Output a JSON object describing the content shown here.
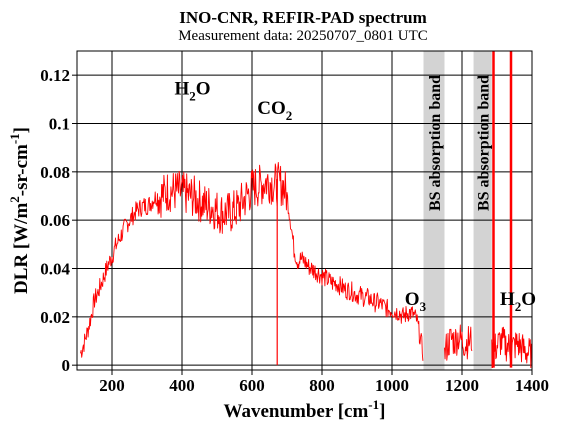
{
  "chart_data": {
    "type": "line",
    "title": "INO-CNR, REFIR-PAD spectrum",
    "subtitle": "Measurement data: 20250707_0801 UTC",
    "xlabel": "Wavenumber [cm-1]",
    "ylabel": "DLR [W/m2-sr-cm-1]",
    "xlim": [
      100,
      1400
    ],
    "ylim": [
      -0.002,
      0.13
    ],
    "xticks": [
      "200",
      "400",
      "600",
      "800",
      "1000",
      "1200",
      "1400"
    ],
    "xtick_values": [
      200,
      400,
      600,
      800,
      1000,
      1200,
      1400
    ],
    "yticks": [
      "0",
      "0.02",
      "0.04",
      "0.06",
      "0.08",
      "0.1",
      "0.12"
    ],
    "ytick_values": [
      0,
      0.02,
      0.04,
      0.06,
      0.08,
      0.1,
      0.12
    ],
    "grid": true,
    "line_color": "#ff0000",
    "band_color": "#d3d3d3",
    "annotations": [
      {
        "label": "H2O",
        "base": "H",
        "sub": "2",
        "rest": "O",
        "x": 430,
        "y": 0.112
      },
      {
        "label": "CO2",
        "base": "CO",
        "sub": "2",
        "rest": "",
        "x": 665,
        "y": 0.104
      },
      {
        "label": "O3",
        "base": "O",
        "sub": "3",
        "rest": "",
        "x": 1067,
        "y": 0.025
      },
      {
        "label": "H2O",
        "base": "H",
        "sub": "2",
        "rest": "O",
        "x": 1360,
        "y": 0.025
      }
    ],
    "bands": [
      {
        "label": "BS absorption band",
        "x0": 1090,
        "x1": 1150
      },
      {
        "label": "BS absorption band",
        "x0": 1233,
        "x1": 1285
      }
    ],
    "series": [
      {
        "x": [
          110,
          120,
          130,
          140,
          150,
          160,
          170,
          180,
          190,
          200,
          210,
          220,
          230,
          240,
          250,
          260,
          270,
          280,
          290,
          300,
          310,
          320,
          330,
          340,
          350,
          360,
          370,
          380,
          390,
          400,
          410,
          420,
          430,
          440,
          450,
          460,
          470,
          480,
          490,
          500,
          510,
          520,
          530,
          540,
          550,
          560,
          570,
          580,
          590,
          600,
          610,
          620,
          630,
          640,
          650,
          660,
          670,
          680,
          690,
          700,
          710,
          720,
          730,
          740,
          750,
          760,
          770,
          780,
          790,
          800,
          810,
          820,
          830,
          840,
          850,
          860,
          870,
          880,
          890,
          900,
          910,
          920,
          930,
          940,
          950,
          960,
          970,
          980,
          990,
          1000,
          1010,
          1020,
          1030,
          1040,
          1050,
          1060,
          1070,
          1080,
          1090,
          1150,
          1160,
          1170,
          1180,
          1190,
          1200,
          1210,
          1220,
          1230,
          1285,
          1290,
          1300,
          1310,
          1320,
          1330,
          1340,
          1350,
          1360,
          1370,
          1380,
          1390,
          1400
        ],
        "y": [
          0.005,
          0.009,
          0.014,
          0.02,
          0.027,
          0.03,
          0.034,
          0.038,
          0.042,
          0.045,
          0.049,
          0.052,
          0.055,
          0.058,
          0.06,
          0.062,
          0.064,
          0.065,
          0.066,
          0.066,
          0.067,
          0.069,
          0.07,
          0.07,
          0.071,
          0.072,
          0.072,
          0.072,
          0.072,
          0.071,
          0.071,
          0.07,
          0.07,
          0.069,
          0.068,
          0.067,
          0.066,
          0.066,
          0.065,
          0.064,
          0.063,
          0.063,
          0.063,
          0.063,
          0.064,
          0.065,
          0.067,
          0.069,
          0.071,
          0.073,
          0.074,
          0.074,
          0.075,
          0.076,
          0.076,
          0.075,
          0.075,
          0.075,
          0.074,
          0.07,
          0.06,
          0.048,
          0.043,
          0.044,
          0.043,
          0.041,
          0.04,
          0.039,
          0.038,
          0.037,
          0.036,
          0.035,
          0.034,
          0.034,
          0.033,
          0.032,
          0.031,
          0.031,
          0.03,
          0.029,
          0.029,
          0.028,
          0.028,
          0.027,
          0.026,
          0.026,
          0.025,
          0.024,
          0.023,
          0.023,
          0.022,
          0.022,
          0.02,
          0.021,
          0.022,
          0.021,
          0.019,
          0.012,
          0.004,
          0.005,
          0.009,
          0.011,
          0.01,
          0.012,
          0.01,
          0.009,
          0.01,
          0.011,
          0.004,
          0.006,
          0.008,
          0.01,
          0.009,
          0.008,
          0.007,
          0.008,
          0.009,
          0.007,
          0.006,
          0.005,
          0.004
        ]
      }
    ],
    "spikes": [
      {
        "x": 672,
        "y0": 0,
        "y1": 0.077
      },
      {
        "x": 1290,
        "y0": -0.001,
        "y1": 0.13
      },
      {
        "x": 1340,
        "y0": -0.001,
        "y1": 0.13
      }
    ]
  }
}
